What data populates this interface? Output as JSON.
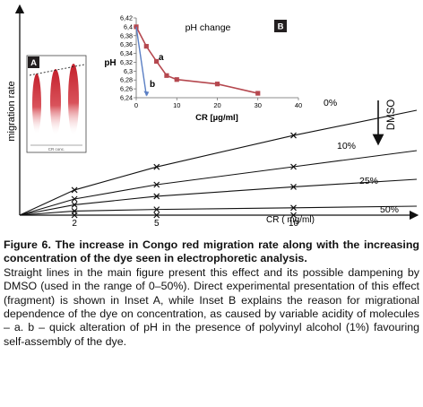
{
  "chart_data": [
    {
      "type": "line",
      "title": "",
      "ylabel": "migration rate",
      "xlabel": "CR ( mg/ml)",
      "x_ticks": [
        "2",
        "5",
        "10"
      ],
      "x_markers": [
        2,
        5,
        10
      ],
      "xlim": [
        0,
        14.5
      ],
      "ylim": [
        0,
        1
      ],
      "side_label": "DMSO",
      "series": [
        {
          "name": "0%",
          "x": [
            0,
            2,
            5,
            10,
            14.5
          ],
          "y": [
            0,
            0.24,
            0.46,
            0.76,
            1.0
          ]
        },
        {
          "name": "10%",
          "x": [
            0,
            2,
            5,
            10,
            14.5
          ],
          "y": [
            0,
            0.18,
            0.34,
            0.54,
            0.72
          ]
        },
        {
          "name": "25%",
          "x": [
            0,
            2,
            5,
            10,
            14.5
          ],
          "y": [
            0,
            0.11,
            0.2,
            0.3,
            0.38
          ]
        },
        {
          "name": "50%",
          "x": [
            0,
            2,
            5,
            10,
            14.5
          ],
          "y": [
            0,
            0.05,
            0.07,
            0.09,
            0.11
          ]
        }
      ]
    },
    {
      "type": "line",
      "title": "pH change",
      "panel_label": "B",
      "ylabel": "pH",
      "xlabel": "CR [µg/ml]",
      "xlim": [
        0,
        40
      ],
      "ylim": [
        6.24,
        6.42
      ],
      "x_ticks": [
        0,
        10,
        20,
        30,
        40
      ],
      "y_ticks": [
        6.24,
        6.26,
        6.28,
        6.3,
        6.32,
        6.34,
        6.36,
        6.38,
        6.4,
        6.42
      ],
      "y_tick_labels": [
        "6,24",
        "6,26",
        "6,28",
        "6,3",
        "6,32",
        "6,34",
        "6,36",
        "6,38",
        "6,4",
        "6,42"
      ],
      "series": [
        {
          "name": "a",
          "color": "#b5484f",
          "x": [
            0,
            2.5,
            5,
            7.5,
            10,
            20,
            30
          ],
          "y": [
            6.4,
            6.356,
            6.322,
            6.29,
            6.281,
            6.271,
            6.25
          ]
        },
        {
          "name": "b",
          "color": "#5b7fc4",
          "x": [
            0,
            2.5
          ],
          "y": [
            6.4,
            6.245
          ]
        }
      ]
    }
  ],
  "inset_a": {
    "panel_label": "A",
    "xlabel": "CR conc."
  },
  "caption": {
    "title": "Figure 6. The increase in Congo red migration rate along with the increasing concentration of the dye seen in electrophoretic analysis.",
    "body": "Straight lines in the main figure present this effect and its possible dampening by DMSO (used in the range of 0–50%). Direct experimental presentation of this effect (fragment) is shown in Inset A, while Inset B explains the reason for migrational dependence of the dye on concentration, as caused by variable acidity of molecules – a. b – quick alteration of pH in the presence of polyvinyl alcohol (1%) favouring self-assembly of the dye."
  }
}
